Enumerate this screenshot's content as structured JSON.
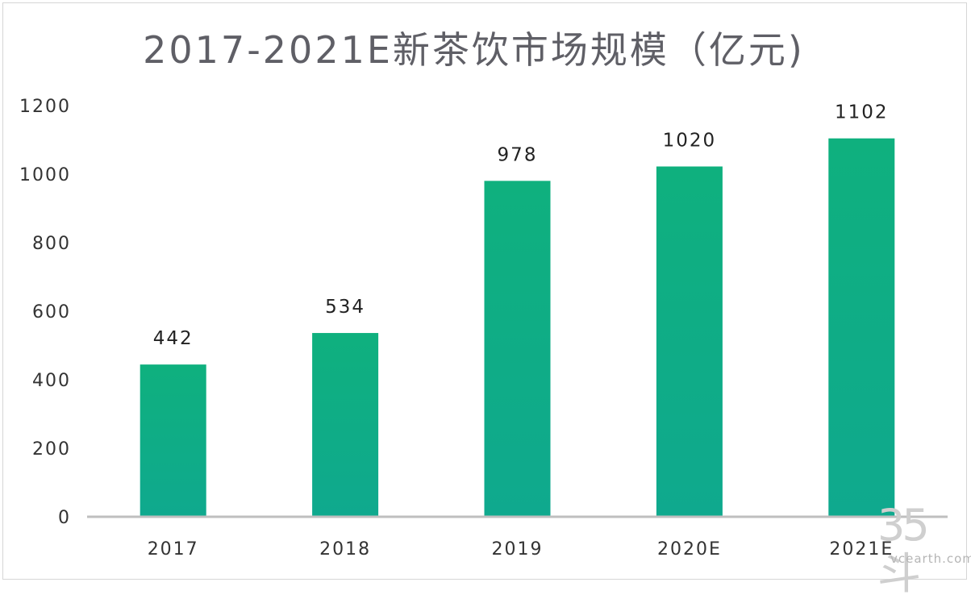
{
  "chart_data": {
    "type": "bar",
    "title": "2017-2021E新茶饮市场规模（亿元)",
    "categories": [
      "2017",
      "2018",
      "2019",
      "2020E",
      "2021E"
    ],
    "values": [
      442,
      534,
      978,
      1020,
      1102
    ],
    "data_labels": [
      "442",
      "534",
      "978",
      "1020",
      "1102"
    ],
    "yticks": [
      "0",
      "200",
      "400",
      "600",
      "800",
      "1000",
      "1200"
    ],
    "ylim": [
      0,
      1200
    ],
    "xlabel": "",
    "ylabel": "",
    "grid": false,
    "legend": "none",
    "colors": {
      "bar_top": "#0fb07e",
      "bar_bottom": "#0fa98e",
      "axis": "#bfbfbf",
      "tick_text": "#333333",
      "label_text": "#222222"
    }
  },
  "watermark": {
    "glyphs": "35斗",
    "site": "vcearth.com"
  }
}
